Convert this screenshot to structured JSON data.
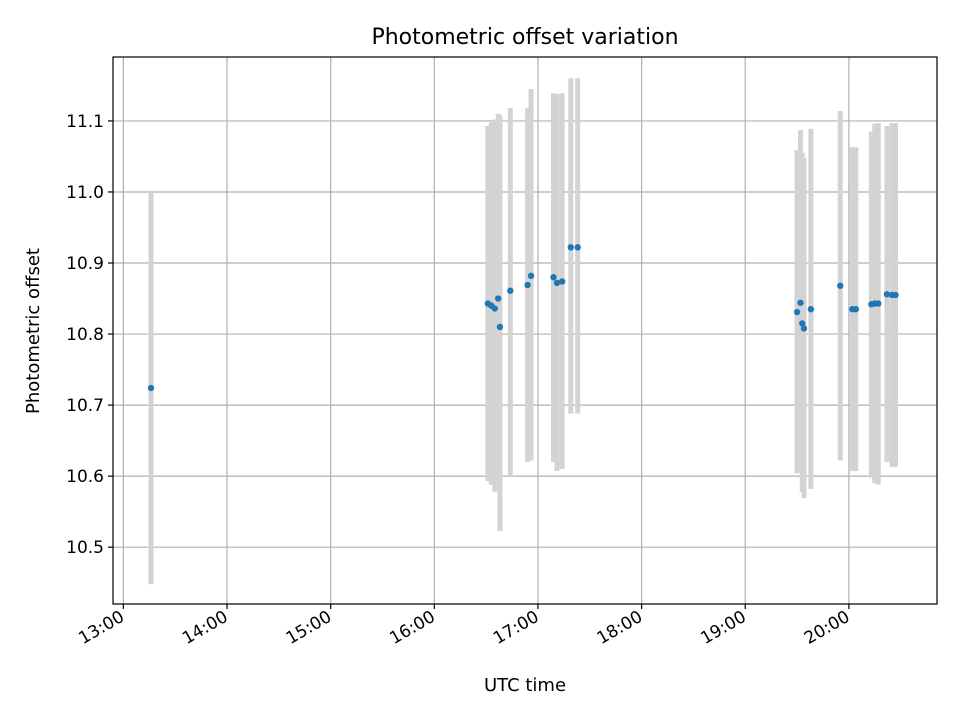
{
  "chart_data": {
    "type": "scatter",
    "title": "Photometric offset variation",
    "xlabel": "UTC time",
    "ylabel": "Photometric offset",
    "grid": true,
    "xlim": [
      "12:54",
      "20:51"
    ],
    "ylim": [
      10.42,
      11.19
    ],
    "x_ticks": [
      "13:00",
      "14:00",
      "15:00",
      "16:00",
      "17:00",
      "18:00",
      "19:00",
      "20:00"
    ],
    "y_ticks": [
      10.5,
      10.6,
      10.7,
      10.8,
      10.9,
      11.0,
      11.1
    ],
    "colors": {
      "point": "#1f77b4",
      "errorbar": "#d3d3d3",
      "grid": "#b0b0b0"
    },
    "points": [
      {
        "t": "13:16",
        "y": 10.724,
        "lo": 10.448,
        "hi": 11.0
      },
      {
        "t": "16:31",
        "y": 10.843,
        "lo": 10.593,
        "hi": 11.093
      },
      {
        "t": "16:33",
        "y": 10.84,
        "lo": 10.588,
        "hi": 11.098
      },
      {
        "t": "16:35",
        "y": 10.836,
        "lo": 10.578,
        "hi": 11.102
      },
      {
        "t": "16:37",
        "y": 10.85,
        "lo": 10.59,
        "hi": 11.11
      },
      {
        "t": "16:38",
        "y": 10.81,
        "lo": 10.523,
        "hi": 11.108
      },
      {
        "t": "16:44",
        "y": 10.861,
        "lo": 10.6,
        "hi": 11.118
      },
      {
        "t": "16:54",
        "y": 10.869,
        "lo": 10.62,
        "hi": 11.118
      },
      {
        "t": "16:56",
        "y": 10.882,
        "lo": 10.622,
        "hi": 11.145
      },
      {
        "t": "17:09",
        "y": 10.88,
        "lo": 10.62,
        "hi": 11.139
      },
      {
        "t": "17:11",
        "y": 10.872,
        "lo": 10.607,
        "hi": 11.138
      },
      {
        "t": "17:14",
        "y": 10.874,
        "lo": 10.61,
        "hi": 11.139
      },
      {
        "t": "17:19",
        "y": 10.922,
        "lo": 10.688,
        "hi": 11.16
      },
      {
        "t": "17:23",
        "y": 10.922,
        "lo": 10.688,
        "hi": 11.16
      },
      {
        "t": "19:30",
        "y": 10.831,
        "lo": 10.604,
        "hi": 11.059
      },
      {
        "t": "19:32",
        "y": 10.844,
        "lo": 10.608,
        "hi": 11.087
      },
      {
        "t": "19:33",
        "y": 10.815,
        "lo": 10.578,
        "hi": 11.055
      },
      {
        "t": "19:34",
        "y": 10.808,
        "lo": 10.569,
        "hi": 11.048
      },
      {
        "t": "19:38",
        "y": 10.835,
        "lo": 10.582,
        "hi": 11.089
      },
      {
        "t": "19:55",
        "y": 10.868,
        "lo": 10.622,
        "hi": 11.114
      },
      {
        "t": "20:02",
        "y": 10.835,
        "lo": 10.607,
        "hi": 11.063
      },
      {
        "t": "20:04",
        "y": 10.835,
        "lo": 10.607,
        "hi": 11.063
      },
      {
        "t": "20:13",
        "y": 10.842,
        "lo": 10.598,
        "hi": 11.085
      },
      {
        "t": "20:15",
        "y": 10.843,
        "lo": 10.59,
        "hi": 11.096
      },
      {
        "t": "20:17",
        "y": 10.843,
        "lo": 10.588,
        "hi": 11.097
      },
      {
        "t": "20:22",
        "y": 10.856,
        "lo": 10.62,
        "hi": 11.093
      },
      {
        "t": "20:25",
        "y": 10.855,
        "lo": 10.613,
        "hi": 11.097
      },
      {
        "t": "20:27",
        "y": 10.855,
        "lo": 10.613,
        "hi": 11.097
      }
    ]
  }
}
